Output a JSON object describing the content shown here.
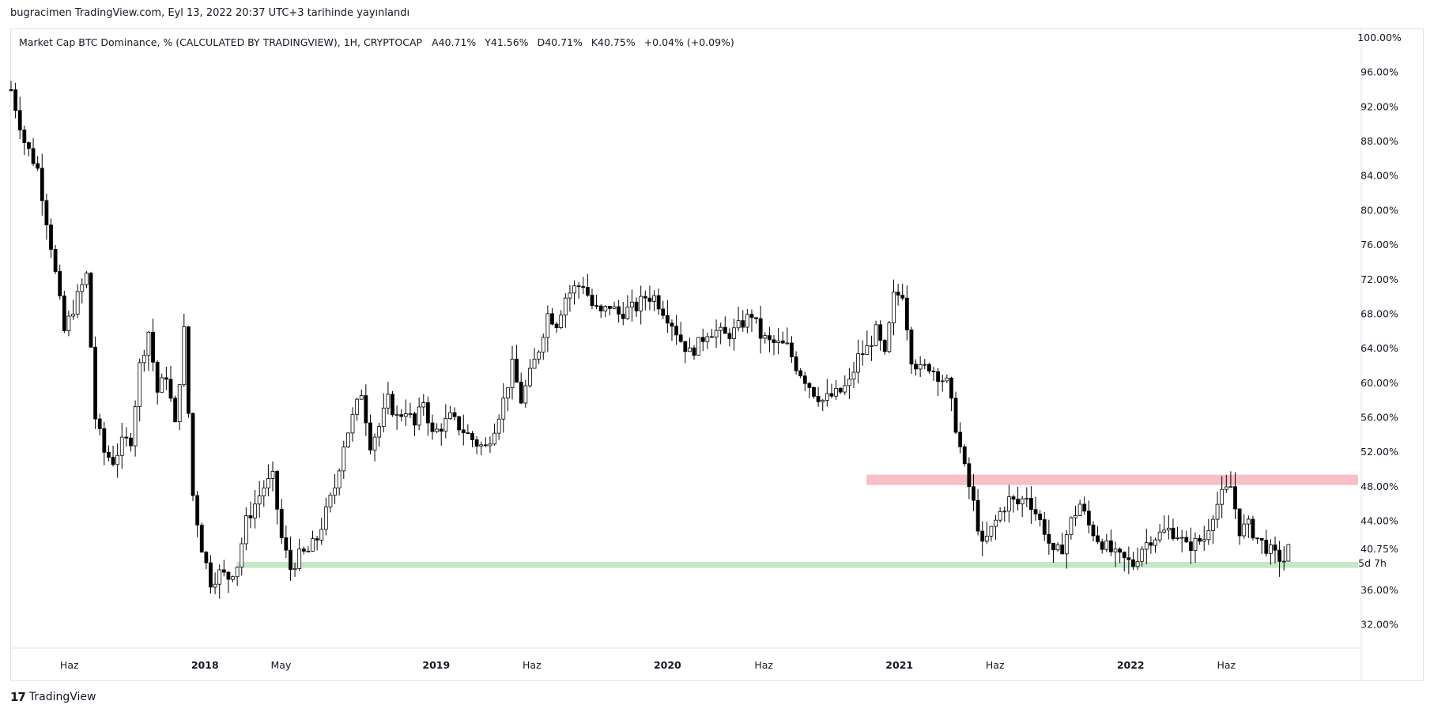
{
  "header": {
    "published": "bugracimen TradingView.com, Eyl 13, 2022 20:37 UTC+3 tarihinde yayınlandı"
  },
  "legend": {
    "symbol": "Market Cap BTC Dominance, % (CALCULATED BY TRADINGVIEW), 1H, CRYPTOCAP",
    "open": "A40.71%",
    "high": "Y41.56%",
    "low": "D40.71%",
    "close": "K40.75%",
    "change": "+0.04% (+0.09%)"
  },
  "footer": {
    "brand": "TradingView",
    "logo_text": "17"
  },
  "chart_data": {
    "type": "candlestick",
    "y_unit": "%",
    "ylim": [
      29.5,
      101
    ],
    "y_ticks": [
      "100.00%",
      "96.00%",
      "92.00%",
      "88.00%",
      "84.00%",
      "80.00%",
      "76.00%",
      "72.00%",
      "68.00%",
      "64.00%",
      "60.00%",
      "56.00%",
      "52.00%",
      "48.00%",
      "44.00%",
      "40.75%",
      "36.00%",
      "32.00%"
    ],
    "y_tick_values": [
      100,
      96,
      92,
      88,
      84,
      80,
      76,
      72,
      68,
      64,
      60,
      56,
      52,
      48,
      44,
      36,
      32
    ],
    "last_price": {
      "label": "40.75%",
      "value": 40.75,
      "countdown": "5d 7h"
    },
    "x_ticks": [
      {
        "label": "Haz",
        "date": "2017-06"
      },
      {
        "label": "2018",
        "date": "2018-01",
        "bold": true
      },
      {
        "label": "May",
        "date": "2018-05"
      },
      {
        "label": "2019",
        "date": "2019-01",
        "bold": true
      },
      {
        "label": "Haz",
        "date": "2019-06"
      },
      {
        "label": "2020",
        "date": "2020-01",
        "bold": true
      },
      {
        "label": "Haz",
        "date": "2020-06"
      },
      {
        "label": "2021",
        "date": "2021-01",
        "bold": true
      },
      {
        "label": "Haz",
        "date": "2021-06"
      },
      {
        "label": "2022",
        "date": "2022-01",
        "bold": true
      },
      {
        "label": "Haz",
        "date": "2022-06"
      }
    ],
    "x_range": [
      "2017-03-01",
      "2022-12-31"
    ],
    "zones": [
      {
        "name": "resistance",
        "color": "#f7c0c5",
        "from": "2020-11-10",
        "to": "2022-12-31",
        "low": 48.2,
        "high": 49.4
      },
      {
        "name": "support",
        "color": "#c8e6c9",
        "from": "2018-02-20",
        "to": "2022-12-31",
        "low": 38.6,
        "high": 39.3
      }
    ],
    "candle_period_days": 7,
    "series": [
      {
        "date": "2017-03-01",
        "close": 94
      },
      {
        "date": "2017-03-22",
        "close": 88
      },
      {
        "date": "2017-04-12",
        "close": 84.8
      },
      {
        "date": "2017-05-03",
        "close": 76
      },
      {
        "date": "2017-05-24",
        "close": 66
      },
      {
        "date": "2017-06-14",
        "close": 70
      },
      {
        "date": "2017-06-28",
        "close": 72.5
      },
      {
        "date": "2017-07-12",
        "close": 56
      },
      {
        "date": "2017-07-26",
        "close": 52
      },
      {
        "date": "2017-08-09",
        "close": 51
      },
      {
        "date": "2017-08-23",
        "close": 53
      },
      {
        "date": "2017-09-06",
        "close": 53.5
      },
      {
        "date": "2017-09-20",
        "close": 62
      },
      {
        "date": "2017-10-04",
        "close": 66
      },
      {
        "date": "2017-10-18",
        "close": 59
      },
      {
        "date": "2017-11-01",
        "close": 61
      },
      {
        "date": "2017-11-15",
        "close": 55
      },
      {
        "date": "2017-11-29",
        "close": 66
      },
      {
        "date": "2017-12-13",
        "close": 47
      },
      {
        "date": "2017-12-27",
        "close": 41
      },
      {
        "date": "2018-01-10",
        "close": 37
      },
      {
        "date": "2018-01-24",
        "close": 38
      },
      {
        "date": "2018-02-07",
        "close": 37.5
      },
      {
        "date": "2018-02-21",
        "close": 39
      },
      {
        "date": "2018-03-07",
        "close": 44
      },
      {
        "date": "2018-03-21",
        "close": 46
      },
      {
        "date": "2018-04-04",
        "close": 48
      },
      {
        "date": "2018-04-18",
        "close": 49
      },
      {
        "date": "2018-05-02",
        "close": 42
      },
      {
        "date": "2018-05-16",
        "close": 38.5
      },
      {
        "date": "2018-05-30",
        "close": 40
      },
      {
        "date": "2018-06-13",
        "close": 40.5
      },
      {
        "date": "2018-06-27",
        "close": 42
      },
      {
        "date": "2018-07-11",
        "close": 45
      },
      {
        "date": "2018-07-25",
        "close": 48
      },
      {
        "date": "2018-08-08",
        "close": 53
      },
      {
        "date": "2018-08-22",
        "close": 56
      },
      {
        "date": "2018-09-05",
        "close": 59
      },
      {
        "date": "2018-09-19",
        "close": 53
      },
      {
        "date": "2018-10-03",
        "close": 55
      },
      {
        "date": "2018-10-17",
        "close": 58
      },
      {
        "date": "2018-10-31",
        "close": 56
      },
      {
        "date": "2018-11-14",
        "close": 57
      },
      {
        "date": "2018-11-28",
        "close": 55
      },
      {
        "date": "2018-12-12",
        "close": 58
      },
      {
        "date": "2018-12-26",
        "close": 54
      },
      {
        "date": "2019-01-09",
        "close": 55
      },
      {
        "date": "2019-01-23",
        "close": 56
      },
      {
        "date": "2019-02-06",
        "close": 55
      },
      {
        "date": "2019-02-20",
        "close": 54
      },
      {
        "date": "2019-03-06",
        "close": 53
      },
      {
        "date": "2019-03-20",
        "close": 52.5
      },
      {
        "date": "2019-04-03",
        "close": 55
      },
      {
        "date": "2019-04-17",
        "close": 58
      },
      {
        "date": "2019-05-01",
        "close": 62
      },
      {
        "date": "2019-05-15",
        "close": 58
      },
      {
        "date": "2019-05-29",
        "close": 61
      },
      {
        "date": "2019-06-12",
        "close": 64
      },
      {
        "date": "2019-06-26",
        "close": 68
      },
      {
        "date": "2019-07-10",
        "close": 67
      },
      {
        "date": "2019-07-24",
        "close": 70
      },
      {
        "date": "2019-08-07",
        "close": 71
      },
      {
        "date": "2019-08-21",
        "close": 71.5
      },
      {
        "date": "2019-09-04",
        "close": 69
      },
      {
        "date": "2019-09-18",
        "close": 68
      },
      {
        "date": "2019-10-02",
        "close": 69
      },
      {
        "date": "2019-10-16",
        "close": 68
      },
      {
        "date": "2019-10-30",
        "close": 68.5
      },
      {
        "date": "2019-11-13",
        "close": 68.8
      },
      {
        "date": "2019-11-27",
        "close": 70
      },
      {
        "date": "2019-12-11",
        "close": 70
      },
      {
        "date": "2019-12-25",
        "close": 68.5
      },
      {
        "date": "2020-01-08",
        "close": 67
      },
      {
        "date": "2020-01-22",
        "close": 65
      },
      {
        "date": "2020-02-05",
        "close": 63.5
      },
      {
        "date": "2020-02-19",
        "close": 64.5
      },
      {
        "date": "2020-03-04",
        "close": 66
      },
      {
        "date": "2020-03-18",
        "close": 66
      },
      {
        "date": "2020-04-01",
        "close": 65.5
      },
      {
        "date": "2020-04-15",
        "close": 66
      },
      {
        "date": "2020-04-29",
        "close": 67
      },
      {
        "date": "2020-05-13",
        "close": 68
      },
      {
        "date": "2020-05-27",
        "close": 65.5
      },
      {
        "date": "2020-06-10",
        "close": 64.7
      },
      {
        "date": "2020-06-24",
        "close": 64.5
      },
      {
        "date": "2020-07-08",
        "close": 64.2
      },
      {
        "date": "2020-07-22",
        "close": 62
      },
      {
        "date": "2020-08-05",
        "close": 60.5
      },
      {
        "date": "2020-08-19",
        "close": 59
      },
      {
        "date": "2020-09-02",
        "close": 58
      },
      {
        "date": "2020-09-16",
        "close": 58.5
      },
      {
        "date": "2020-09-30",
        "close": 59
      },
      {
        "date": "2020-10-14",
        "close": 60
      },
      {
        "date": "2020-10-28",
        "close": 63
      },
      {
        "date": "2020-11-11",
        "close": 64
      },
      {
        "date": "2020-11-25",
        "close": 66
      },
      {
        "date": "2020-12-09",
        "close": 63
      },
      {
        "date": "2020-12-23",
        "close": 70
      },
      {
        "date": "2021-01-06",
        "close": 70.5
      },
      {
        "date": "2021-01-20",
        "close": 63
      },
      {
        "date": "2021-02-03",
        "close": 61.5
      },
      {
        "date": "2021-02-17",
        "close": 62
      },
      {
        "date": "2021-03-03",
        "close": 61
      },
      {
        "date": "2021-03-17",
        "close": 60
      },
      {
        "date": "2021-03-31",
        "close": 55
      },
      {
        "date": "2021-04-14",
        "close": 50
      },
      {
        "date": "2021-04-28",
        "close": 46
      },
      {
        "date": "2021-05-12",
        "close": 41
      },
      {
        "date": "2021-05-26",
        "close": 43
      },
      {
        "date": "2021-06-09",
        "close": 45
      },
      {
        "date": "2021-06-23",
        "close": 46.5
      },
      {
        "date": "2021-07-07",
        "close": 46
      },
      {
        "date": "2021-07-21",
        "close": 47
      },
      {
        "date": "2021-08-04",
        "close": 45
      },
      {
        "date": "2021-08-18",
        "close": 43
      },
      {
        "date": "2021-09-01",
        "close": 40
      },
      {
        "date": "2021-09-15",
        "close": 41
      },
      {
        "date": "2021-09-29",
        "close": 44
      },
      {
        "date": "2021-10-13",
        "close": 46
      },
      {
        "date": "2021-10-27",
        "close": 43.5
      },
      {
        "date": "2021-11-10",
        "close": 42
      },
      {
        "date": "2021-11-24",
        "close": 41
      },
      {
        "date": "2021-12-08",
        "close": 40
      },
      {
        "date": "2021-12-22",
        "close": 39.5
      },
      {
        "date": "2022-01-05",
        "close": 39
      },
      {
        "date": "2022-01-19",
        "close": 41
      },
      {
        "date": "2022-02-02",
        "close": 42
      },
      {
        "date": "2022-02-16",
        "close": 42.5
      },
      {
        "date": "2022-03-02",
        "close": 43
      },
      {
        "date": "2022-03-16",
        "close": 42.5
      },
      {
        "date": "2022-03-30",
        "close": 41
      },
      {
        "date": "2022-04-13",
        "close": 41.5
      },
      {
        "date": "2022-04-27",
        "close": 42
      },
      {
        "date": "2022-05-11",
        "close": 45
      },
      {
        "date": "2022-05-25",
        "close": 47
      },
      {
        "date": "2022-06-08",
        "close": 48
      },
      {
        "date": "2022-06-22",
        "close": 43
      },
      {
        "date": "2022-07-06",
        "close": 43.5
      },
      {
        "date": "2022-07-20",
        "close": 42
      },
      {
        "date": "2022-08-03",
        "close": 41
      },
      {
        "date": "2022-08-17",
        "close": 40
      },
      {
        "date": "2022-08-31",
        "close": 39.5
      },
      {
        "date": "2022-09-07",
        "close": 40.75
      }
    ]
  }
}
